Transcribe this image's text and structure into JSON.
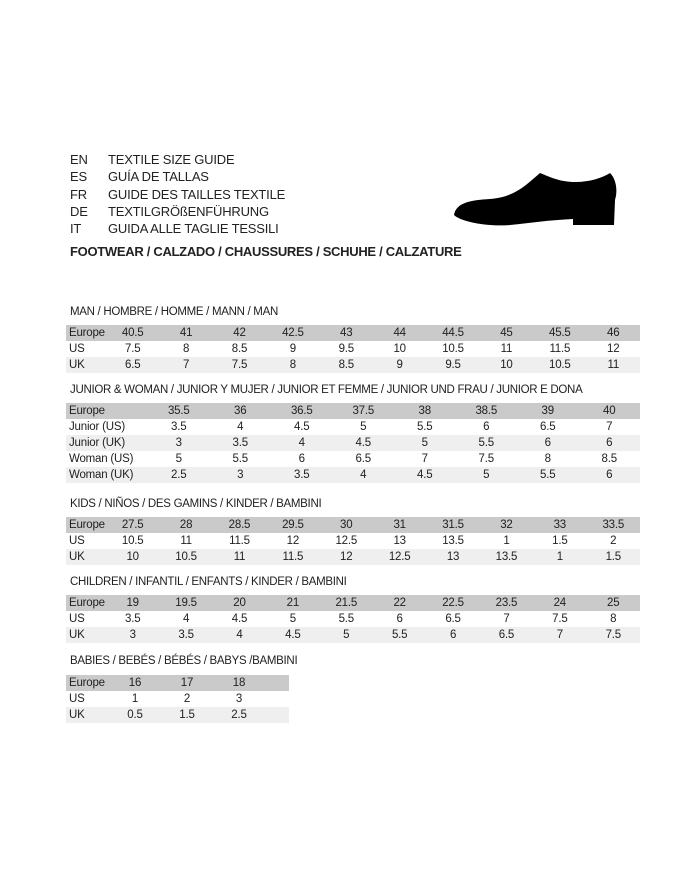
{
  "languages": [
    {
      "code": "EN",
      "text": "TEXTILE SIZE GUIDE"
    },
    {
      "code": "ES",
      "text": "GUÍA DE TALLAS"
    },
    {
      "code": "FR",
      "text": "GUIDE DES TAILLES TEXTILE"
    },
    {
      "code": "DE",
      "text": "TEXTILGRÖßENFÜHRUNG"
    },
    {
      "code": "IT",
      "text": "GUIDA ALLE TAGLIE TESSILI"
    }
  ],
  "icon": "shoe-icon",
  "footwear_title": "FOOTWEAR / CALZADO / CHAUSSURES / SCHUHE / CALZATURE",
  "sections": [
    {
      "title": "MAN / HOMBRE / HOMME / MANN / MAN",
      "rows": [
        {
          "label": "Europe",
          "values": [
            "40.5",
            "41",
            "42",
            "42.5",
            "43",
            "44",
            "44.5",
            "45",
            "45.5",
            "46"
          ]
        },
        {
          "label": "US",
          "values": [
            "7.5",
            "8",
            "8.5",
            "9",
            "9.5",
            "10",
            "10.5",
            "11",
            "11.5",
            "12"
          ]
        },
        {
          "label": "UK",
          "values": [
            "6.5",
            "7",
            "7.5",
            "8",
            "8.5",
            "9",
            "9.5",
            "10",
            "10.5",
            "11"
          ]
        }
      ]
    },
    {
      "title": "JUNIOR & WOMAN / JUNIOR Y MUJER / JUNIOR ET FEMME / JUNIOR UND FRAU / JUNIOR E DONA",
      "rows": [
        {
          "label": "Europe",
          "values": [
            "35.5",
            "36",
            "36.5",
            "37.5",
            "38",
            "38.5",
            "39",
            "40"
          ]
        },
        {
          "label": "Junior (US)",
          "values": [
            "3.5",
            "4",
            "4.5",
            "5",
            "5.5",
            "6",
            "6.5",
            "7"
          ]
        },
        {
          "label": "Junior (UK)",
          "values": [
            "3",
            "3.5",
            "4",
            "4.5",
            "5",
            "5.5",
            "6",
            "6"
          ]
        },
        {
          "label": "Woman (US)",
          "values": [
            "5",
            "5.5",
            "6",
            "6.5",
            "7",
            "7.5",
            "8",
            "8.5"
          ]
        },
        {
          "label": "Woman (UK)",
          "values": [
            "2.5",
            "3",
            "3.5",
            "4",
            "4.5",
            "5",
            "5.5",
            "6"
          ]
        }
      ]
    },
    {
      "title": "KIDS / NIÑOS / DES GAMINS / KINDER / BAMBINI",
      "rows": [
        {
          "label": "Europe",
          "values": [
            "27.5",
            "28",
            "28.5",
            "29.5",
            "30",
            "31",
            "31.5",
            "32",
            "33",
            "33.5"
          ]
        },
        {
          "label": "US",
          "values": [
            "10.5",
            "11",
            "11.5",
            "12",
            "12.5",
            "13",
            "13.5",
            "1",
            "1.5",
            "2"
          ]
        },
        {
          "label": "UK",
          "values": [
            "10",
            "10.5",
            "11",
            "11.5",
            "12",
            "12.5",
            "13",
            "13.5",
            "1",
            "1.5"
          ]
        }
      ]
    },
    {
      "title": "CHILDREN / INFANTIL / ENFANTS / KINDER / BAMBINI",
      "rows": [
        {
          "label": "Europe",
          "values": [
            "19",
            "19.5",
            "20",
            "21",
            "21.5",
            "22",
            "22.5",
            "23.5",
            "24",
            "25"
          ]
        },
        {
          "label": "US",
          "values": [
            "3.5",
            "4",
            "4.5",
            "5",
            "5.5",
            "6",
            "6.5",
            "7",
            "7.5",
            "8"
          ]
        },
        {
          "label": "UK",
          "values": [
            "3",
            "3.5",
            "4",
            "4.5",
            "5",
            "5.5",
            "6",
            "6.5",
            "7",
            "7.5"
          ]
        }
      ]
    },
    {
      "title": "BABIES  / BEBÉS / BÉBÉS / BABYS /BAMBINI",
      "rows": [
        {
          "label": "Europe",
          "values": [
            "16",
            "17",
            "18"
          ]
        },
        {
          "label": "US",
          "values": [
            "1",
            "2",
            "3"
          ]
        },
        {
          "label": "UK",
          "values": [
            "0.5",
            "1.5",
            "2.5"
          ]
        }
      ]
    }
  ]
}
